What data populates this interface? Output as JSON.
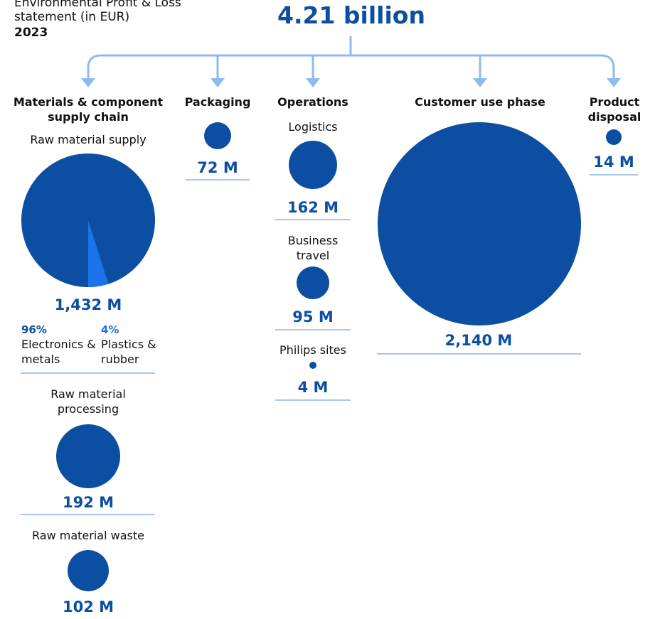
{
  "header": {
    "subtitle": "Environmental Profit & Loss statement (in EUR)",
    "year": "2023",
    "total": "4.21 billion"
  },
  "columns": {
    "materials": {
      "title": "Materials & component supply chain",
      "raw_supply": {
        "label": "Raw material supply",
        "value": "1,432 M",
        "share_a": {
          "pct": "96%",
          "label": "Electronics & metals"
        },
        "share_b": {
          "pct": "4%",
          "label": "Plastics & rubber"
        }
      },
      "raw_processing": {
        "label": "Raw material processing",
        "value": "192 M"
      },
      "raw_waste": {
        "label": "Raw material waste",
        "value": "102 M"
      }
    },
    "packaging": {
      "title": "Packaging",
      "value": "72 M"
    },
    "operations": {
      "title": "Operations",
      "logistics": {
        "label": "Logistics",
        "value": "162 M"
      },
      "business_travel": {
        "label": "Business travel",
        "value": "95 M"
      },
      "philips_sites": {
        "label": "Philips sites",
        "value": "4 M"
      }
    },
    "customer_use": {
      "title": "Customer use phase",
      "value": "2,140 M"
    },
    "disposal": {
      "title": "Product disposal",
      "value": "14 M"
    }
  },
  "chart_data": {
    "type": "bubble",
    "total": 4.21,
    "total_unit": "billion EUR",
    "items": [
      {
        "group": "Materials & component supply chain",
        "name": "Raw material supply",
        "value": 1432,
        "breakdown": [
          {
            "name": "Electronics & metals",
            "percent": 96
          },
          {
            "name": "Plastics & rubber",
            "percent": 4
          }
        ]
      },
      {
        "group": "Materials & component supply chain",
        "name": "Raw material processing",
        "value": 192
      },
      {
        "group": "Materials & component supply chain",
        "name": "Raw material waste",
        "value": 102
      },
      {
        "group": "Packaging",
        "name": "Packaging",
        "value": 72
      },
      {
        "group": "Operations",
        "name": "Logistics",
        "value": 162
      },
      {
        "group": "Operations",
        "name": "Business travel",
        "value": 95
      },
      {
        "group": "Operations",
        "name": "Philips sites",
        "value": 4
      },
      {
        "group": "Customer use phase",
        "name": "Customer use phase",
        "value": 2140
      },
      {
        "group": "Product disposal",
        "name": "Product disposal",
        "value": 14
      }
    ],
    "unit": "M EUR",
    "colors": {
      "main": "#0b4ea2",
      "accent": "#1a73e8",
      "connector": "#8fbaf0",
      "rule": "#a9c6f2"
    }
  }
}
